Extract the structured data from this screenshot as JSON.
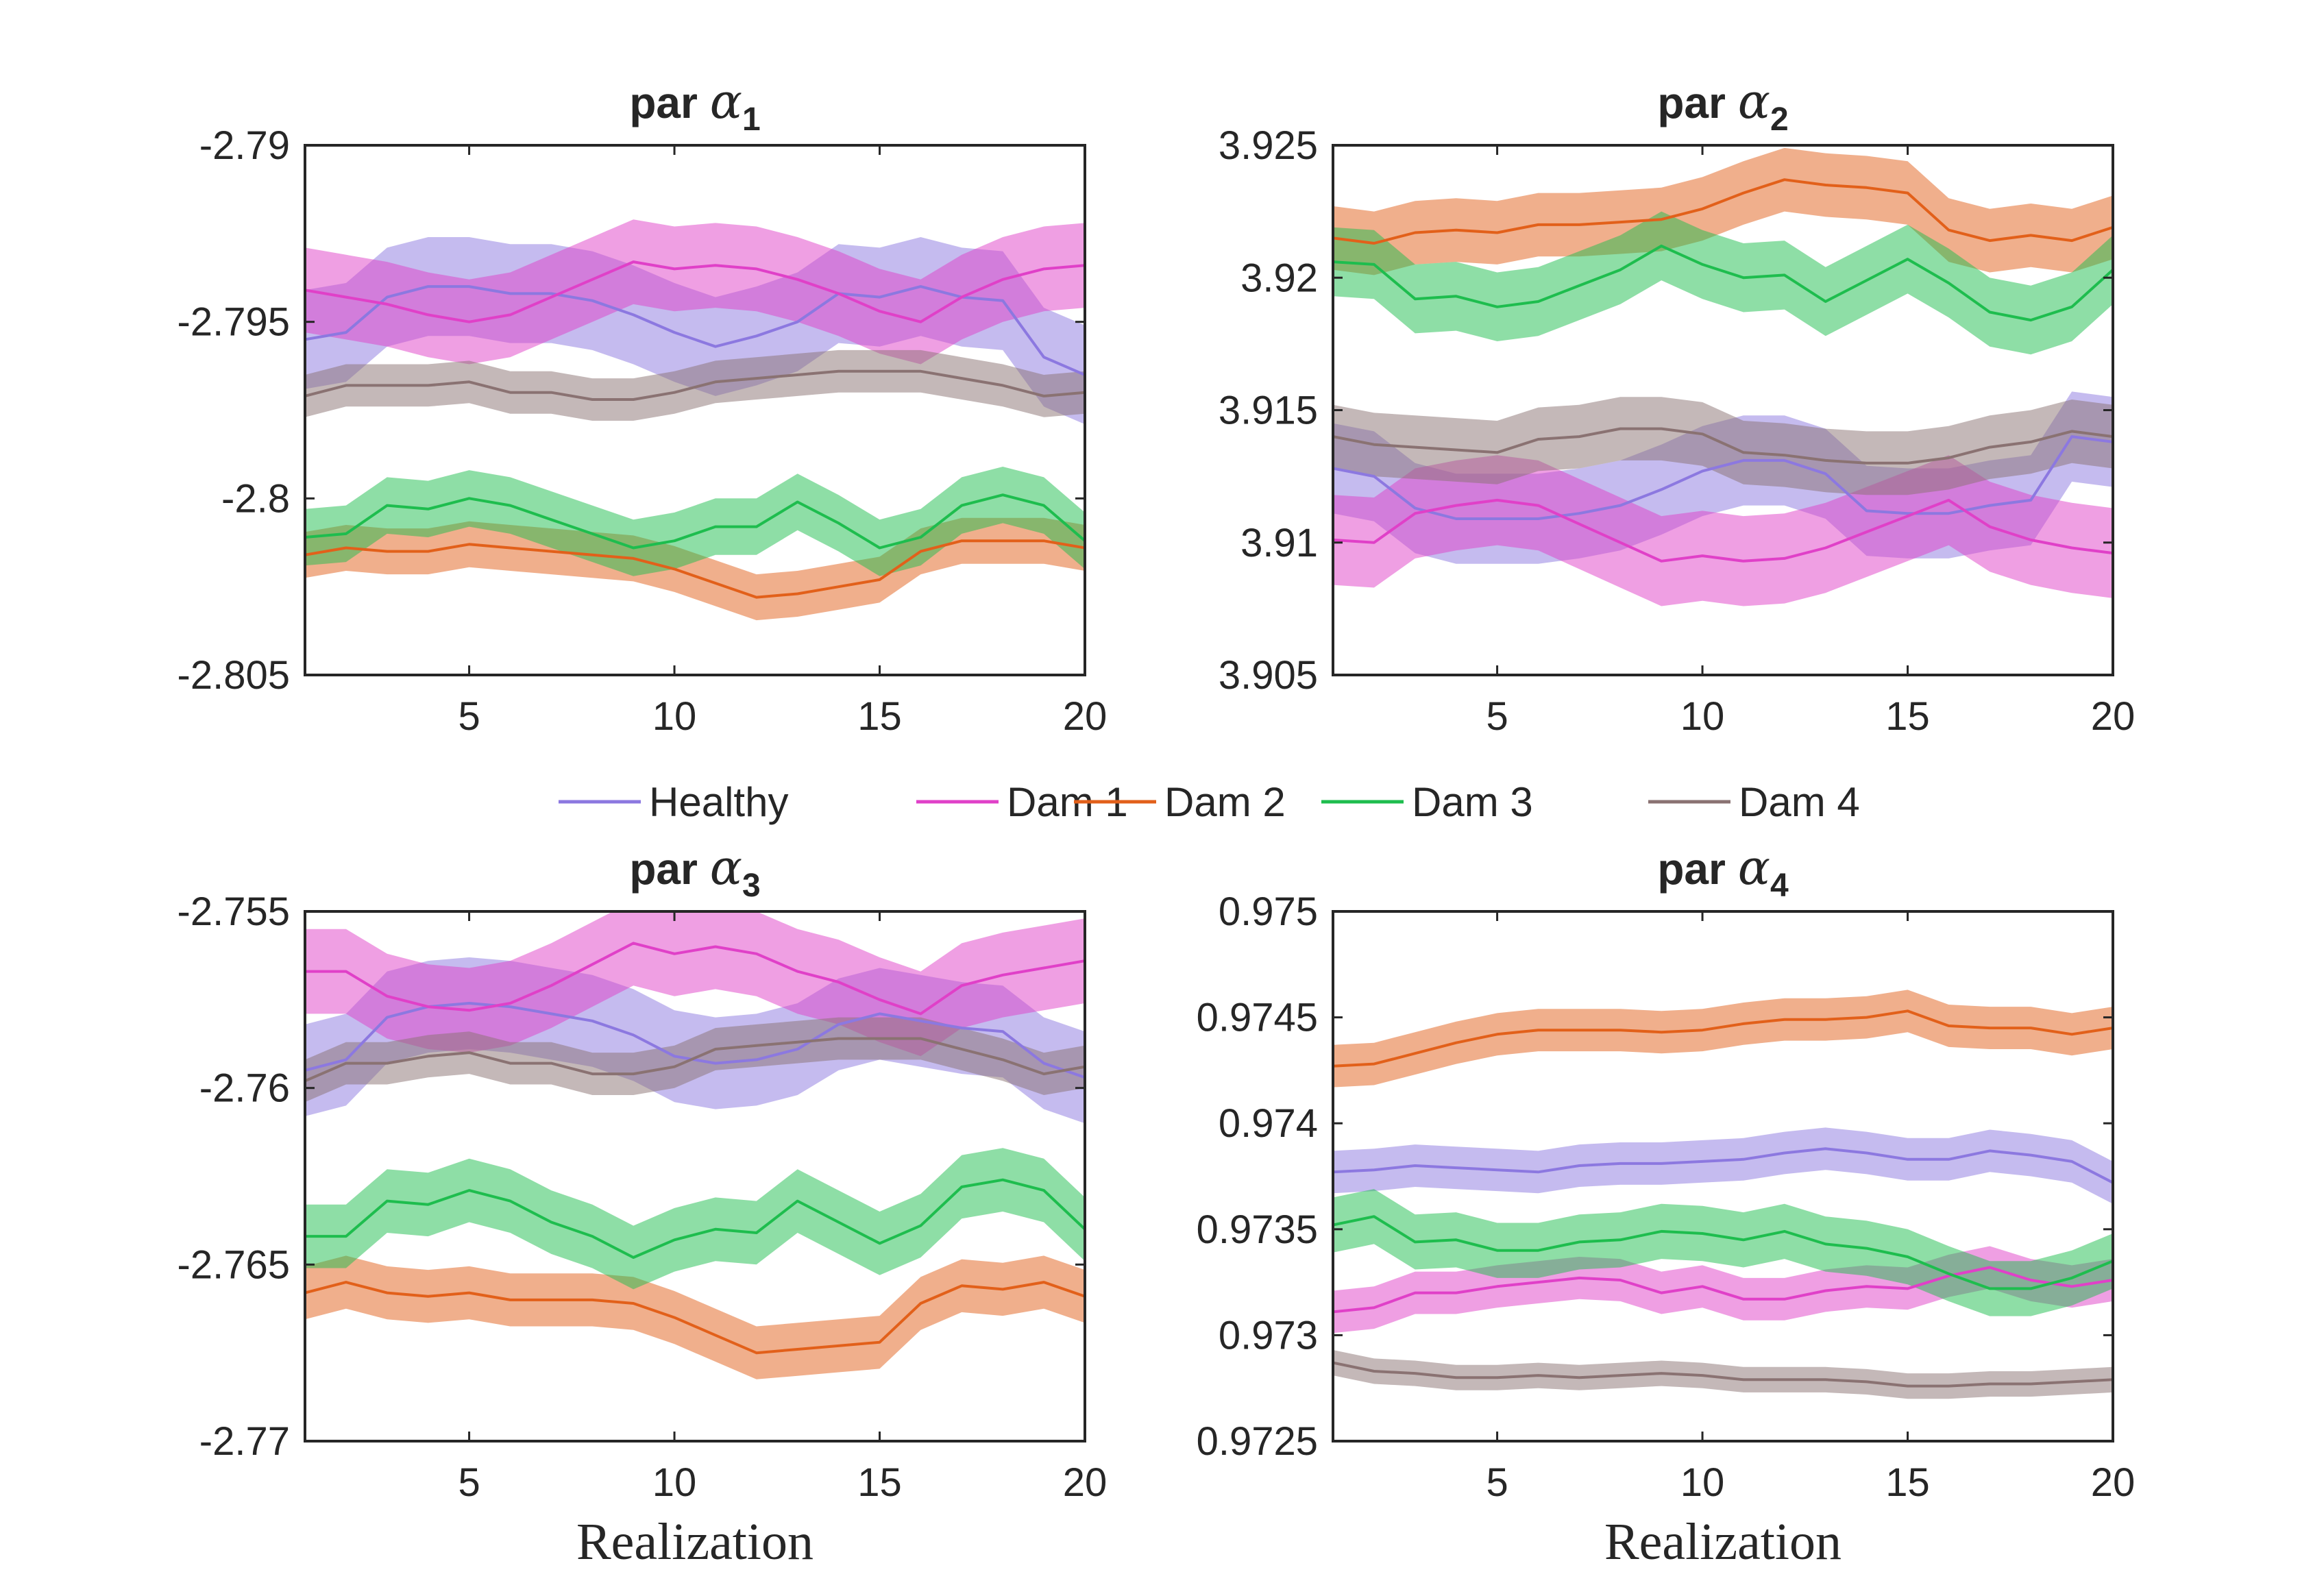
{
  "legend": [
    {
      "label": "Healthy",
      "color": "#8c78e0"
    },
    {
      "label": "Dam 1",
      "color": "#e040c8"
    },
    {
      "label": "Dam 2",
      "color": "#e2601a"
    },
    {
      "label": "Dam 3",
      "color": "#1ebd4e"
    },
    {
      "label": "Dam 4",
      "color": "#8a7272"
    }
  ],
  "chart_data": [
    {
      "type": "line",
      "title": {
        "prefix": "par",
        "symbol": "α",
        "subscript": "1"
      },
      "xlabel": "",
      "xlim": [
        1,
        20
      ],
      "ylim": [
        -2.805,
        -2.79
      ],
      "xticks": [
        5,
        10,
        15,
        20
      ],
      "xticklabels": [
        "5",
        "10",
        "15",
        "20"
      ],
      "yticks": [
        -2.805,
        -2.8,
        -2.795,
        -2.79
      ],
      "yticklabels": [
        "-2.805",
        "-2.8",
        "-2.795",
        "-2.79"
      ],
      "x": [
        1,
        2,
        3,
        4,
        5,
        6,
        7,
        8,
        9,
        10,
        11,
        12,
        13,
        14,
        15,
        16,
        17,
        18,
        19,
        20
      ],
      "series": [
        {
          "name": "Healthy",
          "halfwidth": 0.0014,
          "values": [
            -2.7955,
            -2.7953,
            -2.7943,
            -2.794,
            -2.794,
            -2.7942,
            -2.7942,
            -2.7944,
            -2.7948,
            -2.7953,
            -2.7957,
            -2.7954,
            -2.795,
            -2.7942,
            -2.7943,
            -2.794,
            -2.7943,
            -2.7944,
            -2.796,
            -2.7965
          ]
        },
        {
          "name": "Dam 1",
          "halfwidth": 0.0012,
          "values": [
            -2.7941,
            -2.7943,
            -2.7945,
            -2.7948,
            -2.795,
            -2.7948,
            -2.7943,
            -2.7938,
            -2.7933,
            -2.7935,
            -2.7934,
            -2.7935,
            -2.7938,
            -2.7942,
            -2.7947,
            -2.795,
            -2.7943,
            -2.7938,
            -2.7935,
            -2.7934
          ]
        },
        {
          "name": "Dam 2",
          "halfwidth": 0.00065,
          "values": [
            -2.8016,
            -2.8014,
            -2.8015,
            -2.8015,
            -2.8013,
            -2.8014,
            -2.8015,
            -2.8016,
            -2.8017,
            -2.802,
            -2.8024,
            -2.8028,
            -2.8027,
            -2.8025,
            -2.8023,
            -2.8015,
            -2.8012,
            -2.8012,
            -2.8012,
            -2.8014
          ]
        },
        {
          "name": "Dam 3",
          "halfwidth": 0.0008,
          "values": [
            -2.8011,
            -2.801,
            -2.8002,
            -2.8003,
            -2.8,
            -2.8002,
            -2.8006,
            -2.801,
            -2.8014,
            -2.8012,
            -2.8008,
            -2.8008,
            -2.8001,
            -2.8007,
            -2.8014,
            -2.8011,
            -2.8002,
            -2.7999,
            -2.8002,
            -2.8012
          ]
        },
        {
          "name": "Dam 4",
          "halfwidth": 0.0006,
          "values": [
            -2.7971,
            -2.7968,
            -2.7968,
            -2.7968,
            -2.7967,
            -2.797,
            -2.797,
            -2.7972,
            -2.7972,
            -2.797,
            -2.7967,
            -2.7966,
            -2.7965,
            -2.7964,
            -2.7964,
            -2.7964,
            -2.7966,
            -2.7968,
            -2.7971,
            -2.797
          ]
        }
      ]
    },
    {
      "type": "line",
      "title": {
        "prefix": "par",
        "symbol": "α",
        "subscript": "2"
      },
      "xlabel": "",
      "xlim": [
        1,
        20
      ],
      "ylim": [
        3.905,
        3.925
      ],
      "xticks": [
        5,
        10,
        15,
        20
      ],
      "xticklabels": [
        "5",
        "10",
        "15",
        "20"
      ],
      "yticks": [
        3.905,
        3.91,
        3.915,
        3.92,
        3.925
      ],
      "yticklabels": [
        "3.905",
        "3.91",
        "3.915",
        "3.92",
        "3.925"
      ],
      "x": [
        1,
        2,
        3,
        4,
        5,
        6,
        7,
        8,
        9,
        10,
        11,
        12,
        13,
        14,
        15,
        16,
        17,
        18,
        19,
        20
      ],
      "series": [
        {
          "name": "Healthy",
          "halfwidth": 0.0017,
          "values": [
            3.9128,
            3.9125,
            3.9113,
            3.9109,
            3.9109,
            3.9109,
            3.9111,
            3.9114,
            3.912,
            3.9127,
            3.9131,
            3.9131,
            3.9126,
            3.9112,
            3.9111,
            3.9111,
            3.9114,
            3.9116,
            3.914,
            3.9138
          ]
        },
        {
          "name": "Dam 1",
          "halfwidth": 0.0017,
          "values": [
            3.9101,
            3.91,
            3.9111,
            3.9114,
            3.9116,
            3.9114,
            3.9107,
            3.91,
            3.9093,
            3.9095,
            3.9093,
            3.9094,
            3.9098,
            3.9104,
            3.911,
            3.9116,
            3.9106,
            3.9101,
            3.9098,
            3.9096
          ]
        },
        {
          "name": "Dam 2",
          "halfwidth": 0.0012,
          "values": [
            3.9215,
            3.9213,
            3.9217,
            3.9218,
            3.9217,
            3.922,
            3.922,
            3.9221,
            3.9222,
            3.9226,
            3.9232,
            3.9237,
            3.9235,
            3.9234,
            3.9232,
            3.9218,
            3.9214,
            3.9216,
            3.9214,
            3.9219
          ]
        },
        {
          "name": "Dam 3",
          "halfwidth": 0.0013,
          "values": [
            3.9206,
            3.9205,
            3.9192,
            3.9193,
            3.9189,
            3.9191,
            3.9197,
            3.9203,
            3.9212,
            3.9205,
            3.92,
            3.9201,
            3.9191,
            3.9199,
            3.9207,
            3.9198,
            3.9187,
            3.9184,
            3.9189,
            3.9203
          ]
        },
        {
          "name": "Dam 4",
          "halfwidth": 0.0012,
          "values": [
            3.914,
            3.9137,
            3.9136,
            3.9135,
            3.9134,
            3.9139,
            3.914,
            3.9143,
            3.9143,
            3.9141,
            3.9134,
            3.9133,
            3.9131,
            3.913,
            3.913,
            3.9132,
            3.9136,
            3.9138,
            3.9142,
            3.914
          ]
        }
      ]
    },
    {
      "type": "line",
      "title": {
        "prefix": "par",
        "symbol": "α",
        "subscript": "3"
      },
      "xlabel": "Realization",
      "xlim": [
        1,
        20
      ],
      "ylim": [
        -2.77,
        -2.755
      ],
      "xticks": [
        5,
        10,
        15,
        20
      ],
      "xticklabels": [
        "5",
        "10",
        "15",
        "20"
      ],
      "yticks": [
        -2.77,
        -2.765,
        -2.76,
        -2.755
      ],
      "yticklabels": [
        "-2.77",
        "-2.765",
        "-2.76",
        "-2.755"
      ],
      "x": [
        1,
        2,
        3,
        4,
        5,
        6,
        7,
        8,
        9,
        10,
        11,
        12,
        13,
        14,
        15,
        16,
        17,
        18,
        19,
        20
      ],
      "series": [
        {
          "name": "Healthy",
          "halfwidth": 0.0013,
          "values": [
            -2.7595,
            -2.7592,
            -2.758,
            -2.7577,
            -2.7576,
            -2.7577,
            -2.7579,
            -2.7581,
            -2.7585,
            -2.7591,
            -2.7593,
            -2.7592,
            -2.7589,
            -2.7582,
            -2.7579,
            -2.7581,
            -2.7583,
            -2.7584,
            -2.7593,
            -2.7597
          ]
        },
        {
          "name": "Dam 1",
          "halfwidth": 0.0012,
          "values": [
            -2.7567,
            -2.7567,
            -2.7574,
            -2.7577,
            -2.7578,
            -2.7576,
            -2.7571,
            -2.7565,
            -2.7559,
            -2.7562,
            -2.756,
            -2.7562,
            -2.7567,
            -2.757,
            -2.7575,
            -2.7579,
            -2.7571,
            -2.7568,
            -2.7566,
            -2.7564
          ]
        },
        {
          "name": "Dam 2",
          "halfwidth": 0.00075,
          "values": [
            -2.7658,
            -2.7655,
            -2.7658,
            -2.7659,
            -2.7658,
            -2.766,
            -2.766,
            -2.766,
            -2.7661,
            -2.7665,
            -2.767,
            -2.7675,
            -2.7674,
            -2.7673,
            -2.7672,
            -2.7661,
            -2.7656,
            -2.7657,
            -2.7655,
            -2.7659
          ]
        },
        {
          "name": "Dam 3",
          "halfwidth": 0.0009,
          "values": [
            -2.7642,
            -2.7642,
            -2.7632,
            -2.7633,
            -2.7629,
            -2.7632,
            -2.7638,
            -2.7642,
            -2.7648,
            -2.7643,
            -2.764,
            -2.7641,
            -2.7632,
            -2.7638,
            -2.7644,
            -2.7639,
            -2.7628,
            -2.7626,
            -2.7629,
            -2.764
          ]
        },
        {
          "name": "Dam 4",
          "halfwidth": 0.0006,
          "values": [
            -2.7598,
            -2.7593,
            -2.7593,
            -2.7591,
            -2.759,
            -2.7593,
            -2.7593,
            -2.7596,
            -2.7596,
            -2.7594,
            -2.7589,
            -2.7588,
            -2.7587,
            -2.7586,
            -2.7586,
            -2.7586,
            -2.7589,
            -2.7592,
            -2.7596,
            -2.7594
          ]
        }
      ]
    },
    {
      "type": "line",
      "title": {
        "prefix": "par",
        "symbol": "α",
        "subscript": "4"
      },
      "xlabel": "Realization",
      "xlim": [
        1,
        20
      ],
      "ylim": [
        0.9725,
        0.975
      ],
      "xticks": [
        5,
        10,
        15,
        20
      ],
      "xticklabels": [
        "5",
        "10",
        "15",
        "20"
      ],
      "yticks": [
        0.9725,
        0.973,
        0.9735,
        0.974,
        0.9745,
        0.975
      ],
      "yticklabels": [
        "0.9725",
        "0.973",
        "0.9735",
        "0.974",
        "0.9745",
        "0.975"
      ],
      "x": [
        1,
        2,
        3,
        4,
        5,
        6,
        7,
        8,
        9,
        10,
        11,
        12,
        13,
        14,
        15,
        16,
        17,
        18,
        19,
        20
      ],
      "series": [
        {
          "name": "Healthy",
          "halfwidth": 0.0001,
          "values": [
            0.97377,
            0.97378,
            0.9738,
            0.97379,
            0.97378,
            0.97377,
            0.9738,
            0.97381,
            0.97381,
            0.97382,
            0.97383,
            0.97386,
            0.97388,
            0.97386,
            0.97383,
            0.97383,
            0.97387,
            0.97385,
            0.97382,
            0.97372
          ]
        },
        {
          "name": "Dam 1",
          "halfwidth": 0.0001,
          "values": [
            0.97311,
            0.97313,
            0.9732,
            0.9732,
            0.97323,
            0.97325,
            0.97327,
            0.97326,
            0.9732,
            0.97323,
            0.97317,
            0.97317,
            0.97321,
            0.97323,
            0.97322,
            0.97328,
            0.97332,
            0.97326,
            0.97323,
            0.97326
          ]
        },
        {
          "name": "Dam 2",
          "halfwidth": 0.0001,
          "values": [
            0.97427,
            0.97428,
            0.97433,
            0.97438,
            0.97442,
            0.97444,
            0.97444,
            0.97444,
            0.97443,
            0.97444,
            0.97447,
            0.97449,
            0.97449,
            0.9745,
            0.97453,
            0.97446,
            0.97445,
            0.97445,
            0.97442,
            0.97445
          ]
        },
        {
          "name": "Dam 3",
          "halfwidth": 0.00013,
          "values": [
            0.97352,
            0.97356,
            0.97344,
            0.97345,
            0.9734,
            0.9734,
            0.97344,
            0.97345,
            0.97349,
            0.97348,
            0.97345,
            0.97349,
            0.97343,
            0.97341,
            0.97337,
            0.97329,
            0.97322,
            0.97322,
            0.97327,
            0.97335
          ]
        },
        {
          "name": "Dam 4",
          "halfwidth": 6e-05,
          "values": [
            0.97287,
            0.97283,
            0.97282,
            0.9728,
            0.9728,
            0.97281,
            0.9728,
            0.97281,
            0.97282,
            0.97281,
            0.97279,
            0.97279,
            0.97279,
            0.97278,
            0.97276,
            0.97276,
            0.97277,
            0.97277,
            0.97278,
            0.97279
          ]
        }
      ]
    }
  ]
}
